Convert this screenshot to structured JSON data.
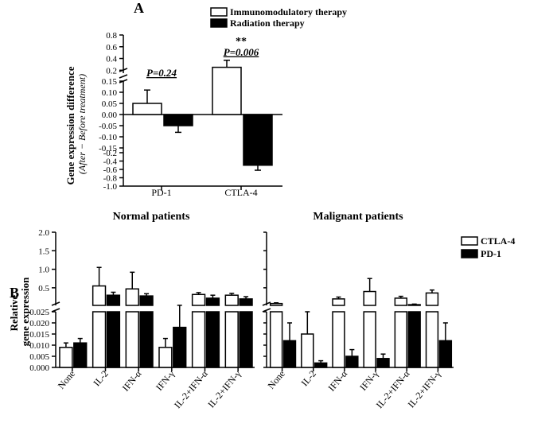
{
  "panelA": {
    "label": "A",
    "type": "bar",
    "ylabel_line1": "Gene expression difference",
    "ylabel_line2": "(After − Before treatment)",
    "legend": [
      {
        "label": "Immunomodulatory therapy",
        "fill": "#ffffff",
        "stroke": "#000000"
      },
      {
        "label": "Radiation therapy",
        "fill": "#000000",
        "stroke": "#000000"
      }
    ],
    "categories": [
      "PD-1",
      "CTLA-4"
    ],
    "yticks_upper": [
      0.0,
      0.2,
      0.4,
      0.6,
      0.8
    ],
    "yticks_lower": [
      -1.0,
      -0.8,
      -0.6,
      -0.4,
      -0.2,
      -0.15,
      -0.1,
      -0.05,
      0.0,
      0.05,
      0.1,
      0.15
    ],
    "yticklabels_upper": [
      "0.0",
      "0.2",
      "0.4",
      "0.6",
      "0.8"
    ],
    "yticklabels_lower": [
      "-1.0",
      "-0.8",
      "-0.6",
      "-0.4",
      "-0.2",
      "-0.15",
      "-0.10",
      "-0.05",
      "0.00",
      "0.05",
      "0.10",
      "0.15"
    ],
    "annotations": [
      {
        "text": "P=0.24",
        "group": 0
      },
      {
        "text": "P=0.006",
        "group": 1,
        "stars": "**"
      }
    ],
    "groups": [
      {
        "name": "PD-1",
        "bars": [
          {
            "series": 0,
            "value": 0.05,
            "err": 0.06
          },
          {
            "series": 1,
            "value": -0.05,
            "err": 0.03
          }
        ]
      },
      {
        "name": "CTLA-4",
        "bars": [
          {
            "series": 0,
            "value": 0.25,
            "err": 0.12
          },
          {
            "series": 1,
            "value": -0.5,
            "err": 0.12
          }
        ]
      }
    ],
    "axis_break": true,
    "bar_width": 0.36,
    "background_color": "#ffffff"
  },
  "panelB": {
    "label": "B",
    "type": "bar",
    "ylabel": "Relative gene expression",
    "titles": [
      "Normal patients",
      "Malignant patients"
    ],
    "legend": [
      {
        "label": "CTLA-4",
        "fill": "#ffffff",
        "stroke": "#000000"
      },
      {
        "label": "PD-1",
        "fill": "#000000",
        "stroke": "#000000"
      }
    ],
    "categories": [
      "None",
      "IL-2",
      "IFN-α",
      "IFN-γ",
      "IL-2+IFN-α",
      "IL-2+IFN-γ"
    ],
    "yticks_upper": [
      0.5,
      1.0,
      1.5,
      2.0
    ],
    "yticks_lower": [
      0.0,
      0.005,
      0.01,
      0.015,
      0.02,
      0.025
    ],
    "yticklabels_upper": [
      "0.5",
      "1.0",
      "1.5",
      "2.0"
    ],
    "yticklabels_lower": [
      "0.000",
      "0.005",
      "0.010",
      "0.015",
      "0.020",
      "0.025"
    ],
    "subplots": [
      {
        "title_idx": 0,
        "groups": [
          {
            "bars": [
              {
                "series": 0,
                "value": 0.009,
                "err": 0.002
              },
              {
                "series": 1,
                "value": 0.011,
                "err": 0.002
              }
            ]
          },
          {
            "bars": [
              {
                "series": 0,
                "value": 0.55,
                "err": 0.5
              },
              {
                "series": 1,
                "value": 0.3,
                "err": 0.08
              }
            ]
          },
          {
            "bars": [
              {
                "series": 0,
                "value": 0.47,
                "err": 0.45
              },
              {
                "series": 1,
                "value": 0.28,
                "err": 0.06
              }
            ]
          },
          {
            "bars": [
              {
                "series": 0,
                "value": 0.009,
                "err": 0.004
              },
              {
                "series": 1,
                "value": 0.018,
                "err": 0.01
              }
            ]
          },
          {
            "bars": [
              {
                "series": 0,
                "value": 0.32,
                "err": 0.05
              },
              {
                "series": 1,
                "value": 0.22,
                "err": 0.08
              }
            ]
          },
          {
            "bars": [
              {
                "series": 0,
                "value": 0.3,
                "err": 0.05
              },
              {
                "series": 1,
                "value": 0.2,
                "err": 0.06
              }
            ]
          }
        ]
      },
      {
        "title_idx": 1,
        "groups": [
          {
            "bars": [
              {
                "series": 0,
                "value": 0.075,
                "err": 0.02
              },
              {
                "series": 1,
                "value": 0.012,
                "err": 0.008
              }
            ]
          },
          {
            "bars": [
              {
                "series": 0,
                "value": 0.015,
                "err": 0.01
              },
              {
                "series": 1,
                "value": 0.002,
                "err": 0.001
              }
            ]
          },
          {
            "bars": [
              {
                "series": 0,
                "value": 0.2,
                "err": 0.05
              },
              {
                "series": 1,
                "value": 0.005,
                "err": 0.003
              }
            ]
          },
          {
            "bars": [
              {
                "series": 0,
                "value": 0.4,
                "err": 0.35
              },
              {
                "series": 1,
                "value": 0.004,
                "err": 0.002
              }
            ]
          },
          {
            "bars": [
              {
                "series": 0,
                "value": 0.22,
                "err": 0.05
              },
              {
                "series": 1,
                "value": 0.045,
                "err": 0.015
              }
            ]
          },
          {
            "bars": [
              {
                "series": 0,
                "value": 0.36,
                "err": 0.08
              },
              {
                "series": 1,
                "value": 0.012,
                "err": 0.008
              }
            ]
          }
        ]
      }
    ],
    "bar_width": 0.38,
    "background_color": "#ffffff"
  }
}
